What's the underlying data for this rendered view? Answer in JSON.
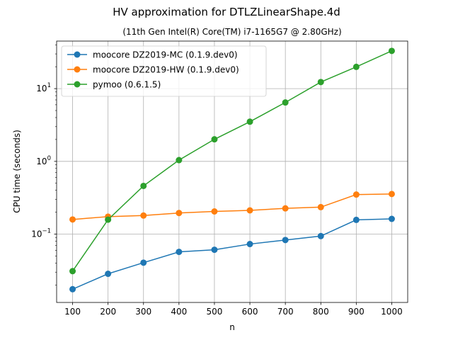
{
  "chart_data": {
    "type": "line",
    "title": "HV approximation for DTLZLinearShape.4d",
    "subtitle": "(11th Gen Intel(R) Core(TM) i7-1165G7 @ 2.80GHz)",
    "xlabel": "n",
    "ylabel": "CPU time (seconds)",
    "yscale": "log",
    "x": [
      100,
      200,
      300,
      400,
      500,
      600,
      700,
      800,
      900,
      1000
    ],
    "xlim": [
      55,
      1045
    ],
    "ylim": [
      0.0115,
      45
    ],
    "x_ticks": [
      "100",
      "200",
      "300",
      "400",
      "500",
      "600",
      "700",
      "800",
      "900",
      "1000"
    ],
    "y_ticks": [
      {
        "value": 0.1,
        "base": "10",
        "exp": "−1"
      },
      {
        "value": 1,
        "base": "10",
        "exp": "0"
      },
      {
        "value": 10,
        "base": "10",
        "exp": "1"
      }
    ],
    "grid": true,
    "legend_position": "top-left",
    "series": [
      {
        "name": "moocore DZ2019-MC (0.1.9.dev0)",
        "color": "#1f77b4",
        "values": [
          0.0175,
          0.0285,
          0.0405,
          0.057,
          0.061,
          0.073,
          0.083,
          0.094,
          0.157,
          0.162
        ]
      },
      {
        "name": "moocore DZ2019-HW (0.1.9.dev0)",
        "color": "#ff7f0e",
        "values": [
          0.159,
          0.174,
          0.18,
          0.195,
          0.205,
          0.212,
          0.226,
          0.235,
          0.35,
          0.356
        ]
      },
      {
        "name": "pymoo (0.6.1.5)",
        "color": "#2ca02c",
        "values": [
          0.031,
          0.158,
          0.46,
          1.04,
          2.01,
          3.51,
          6.45,
          12.3,
          19.9,
          33.0
        ]
      }
    ]
  }
}
